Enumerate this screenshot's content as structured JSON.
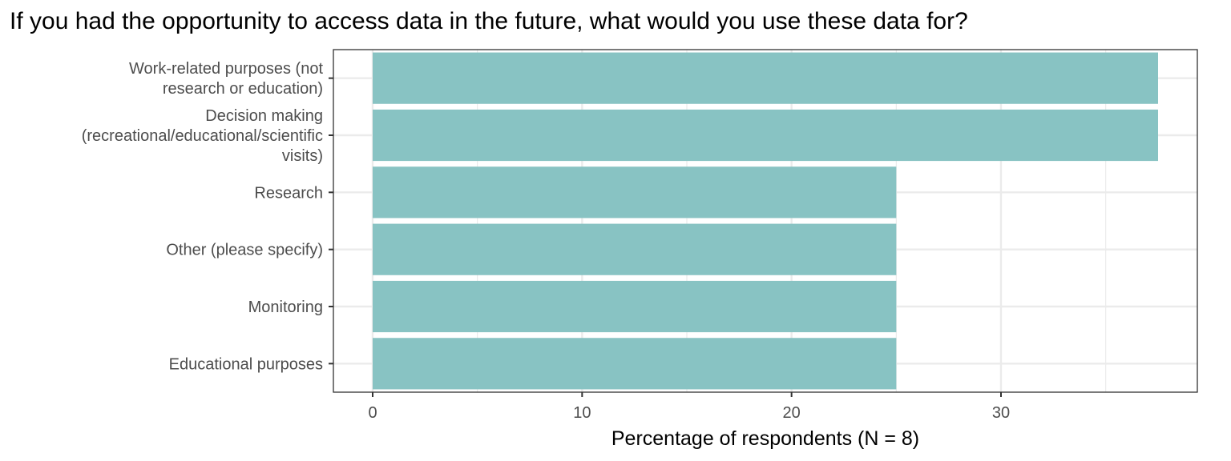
{
  "chart_data": {
    "type": "bar",
    "orientation": "horizontal",
    "title": "If you had the opportunity to access data in the future, what would you use these data for?",
    "xlabel": "Percentage of respondents (N = 8)",
    "ylabel": "",
    "categories": [
      [
        "Work-related purposes (not",
        "research or education)"
      ],
      [
        "Decision making",
        "(recreational/educational/scientific",
        "visits)"
      ],
      [
        "Research"
      ],
      [
        "Other (please specify)"
      ],
      [
        "Monitoring"
      ],
      [
        "Educational purposes"
      ]
    ],
    "values": [
      37.5,
      37.5,
      25,
      25,
      25,
      25
    ],
    "xlim": [
      -1.875,
      39.375
    ],
    "xticks": [
      0,
      10,
      20,
      30
    ],
    "grid": true,
    "bar_color": "#88c3c3",
    "grid_color": "#ebebeb",
    "panel_border_color": "#333333"
  }
}
